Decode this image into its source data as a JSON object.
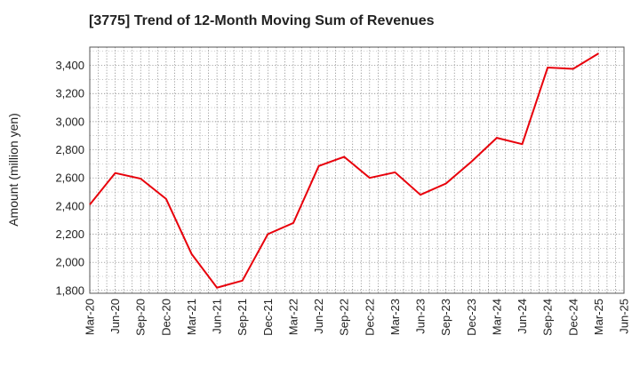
{
  "chart_data": {
    "type": "line",
    "title": "[3775]  Trend of 12-Month Moving Sum of Revenues",
    "xlabel": "",
    "ylabel": "Amount (million yen)",
    "categories": [
      "Mar-20",
      "Jun-20",
      "Sep-20",
      "Dec-20",
      "Mar-21",
      "Jun-21",
      "Sep-21",
      "Dec-21",
      "Mar-22",
      "Jun-22",
      "Sep-22",
      "Dec-22",
      "Mar-23",
      "Jun-23",
      "Sep-23",
      "Dec-23",
      "Mar-24",
      "Jun-24",
      "Sep-24",
      "Dec-24",
      "Mar-25",
      "Jun-25"
    ],
    "ylim": [
      1780,
      3530
    ],
    "yticks": [
      1800,
      2000,
      2200,
      2400,
      2600,
      2800,
      3000,
      3200,
      3400
    ],
    "ytick_labels": [
      "1,800",
      "2,000",
      "2,200",
      "2,400",
      "2,600",
      "2,800",
      "3,000",
      "3,200",
      "3,400"
    ],
    "grid": true,
    "series": [
      {
        "color": "#e8000b",
        "values": [
          2410,
          2635,
          2595,
          2450,
          2060,
          1820,
          1870,
          2200,
          2280,
          2685,
          2750,
          2600,
          2640,
          2480,
          2560,
          2715,
          2885,
          2840,
          3385,
          3375,
          3485,
          null
        ]
      }
    ]
  }
}
